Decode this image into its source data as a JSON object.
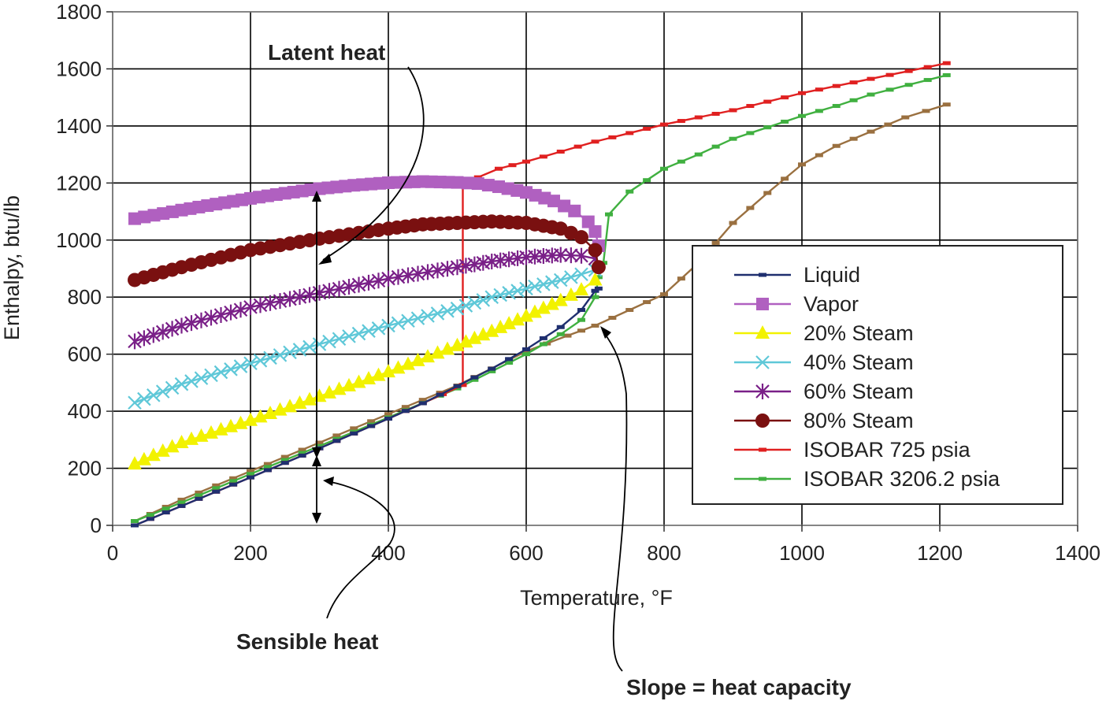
{
  "chart_data": {
    "type": "line",
    "title": "",
    "xlabel": "Temperature, °F",
    "ylabel": "Enthalpy, btu/lb",
    "xlim": [
      0,
      1400
    ],
    "ylim": [
      0,
      1800
    ],
    "xticks": [
      0,
      200,
      400,
      600,
      800,
      1000,
      1200,
      1400
    ],
    "yticks": [
      0,
      200,
      400,
      600,
      800,
      1000,
      1200,
      1400,
      1600,
      1800
    ],
    "grid": true,
    "legend_position": "right",
    "series": [
      {
        "name": "Liquid",
        "color": "#1f2f6f",
        "marker": "dash",
        "x": [
          32,
          100,
          150,
          200,
          250,
          300,
          350,
          400,
          450,
          500,
          550,
          600,
          650,
          680,
          700,
          705
        ],
        "y": [
          0,
          68,
          118,
          168,
          219,
          270,
          322,
          374,
          428,
          488,
          549,
          617,
          695,
          755,
          822,
          830
        ]
      },
      {
        "name": "Vapor",
        "color": "#b060c0",
        "marker": "square",
        "x": [
          32,
          60,
          100,
          150,
          200,
          250,
          300,
          350,
          400,
          450,
          500,
          530,
          560,
          600,
          640,
          670,
          690,
          700,
          705
        ],
        "y": [
          1075,
          1087,
          1105,
          1126,
          1146,
          1164,
          1180,
          1192,
          1201,
          1205,
          1202,
          1198,
          1187,
          1167,
          1137,
          1102,
          1064,
          1030,
          980
        ]
      },
      {
        "name": "20% Steam",
        "color": "#f2f200",
        "marker": "triangle",
        "x": [
          32,
          100,
          200,
          300,
          400,
          500,
          550,
          600,
          650,
          680,
          700
        ],
        "y": [
          215,
          290,
          368,
          452,
          538,
          630,
          680,
          733,
          788,
          825,
          860
        ]
      },
      {
        "name": "40% Steam",
        "color": "#5fc8d8",
        "marker": "x",
        "x": [
          32,
          100,
          200,
          300,
          400,
          500,
          550,
          600,
          650,
          680,
          700
        ],
        "y": [
          430,
          495,
          568,
          635,
          700,
          760,
          800,
          830,
          860,
          880,
          895
        ]
      },
      {
        "name": "60% Steam",
        "color": "#7a2088",
        "marker": "asterisk",
        "x": [
          32,
          100,
          200,
          300,
          400,
          500,
          550,
          600,
          650,
          680,
          700
        ],
        "y": [
          645,
          700,
          765,
          815,
          865,
          905,
          925,
          940,
          948,
          945,
          935
        ]
      },
      {
        "name": "80% Steam",
        "color": "#7a1010",
        "marker": "circle",
        "x": [
          32,
          100,
          200,
          300,
          400,
          450,
          500,
          550,
          600,
          650,
          680,
          700,
          705
        ],
        "y": [
          860,
          905,
          965,
          1005,
          1040,
          1055,
          1060,
          1065,
          1060,
          1040,
          1010,
          965,
          905
        ]
      },
      {
        "name": "ISOBAR 725 psia",
        "color": "#e02020",
        "marker": "dash",
        "x": [
          32,
          100,
          200,
          300,
          400,
          450,
          508,
          508,
          530,
          560,
          600,
          650,
          700,
          750,
          800,
          900,
          1000,
          1100,
          1210
        ],
        "y": [
          0,
          68,
          168,
          270,
          374,
          428,
          492,
          1200,
          1220,
          1250,
          1275,
          1310,
          1345,
          1375,
          1405,
          1455,
          1515,
          1565,
          1620
        ]
      },
      {
        "name": "ISOBAR 3206.2 psia",
        "color": "#40b040",
        "marker": "dash",
        "x": [
          32,
          100,
          200,
          300,
          400,
          500,
          600,
          650,
          680,
          700,
          705,
          712,
          720,
          750,
          800,
          850,
          900,
          950,
          1000,
          1050,
          1100,
          1210
        ],
        "y": [
          15,
          80,
          180,
          278,
          378,
          480,
          600,
          670,
          720,
          800,
          870,
          920,
          1090,
          1170,
          1250,
          1300,
          1355,
          1395,
          1435,
          1470,
          1510,
          1578
        ]
      },
      {
        "name": "",
        "color": "#9a7040",
        "marker": "dash",
        "x": [
          32,
          100,
          200,
          300,
          400,
          500,
          600,
          660,
          700,
          750,
          800,
          850,
          900,
          950,
          1000,
          1050,
          1100,
          1150,
          1210
        ],
        "y": [
          15,
          90,
          190,
          290,
          390,
          490,
          610,
          665,
          700,
          755,
          810,
          920,
          1060,
          1165,
          1265,
          1330,
          1380,
          1430,
          1475
        ]
      }
    ],
    "annotations": [
      {
        "text": "Latent heat"
      },
      {
        "text": "Sensible heat"
      },
      {
        "text": "Slope = heat capacity"
      }
    ]
  }
}
